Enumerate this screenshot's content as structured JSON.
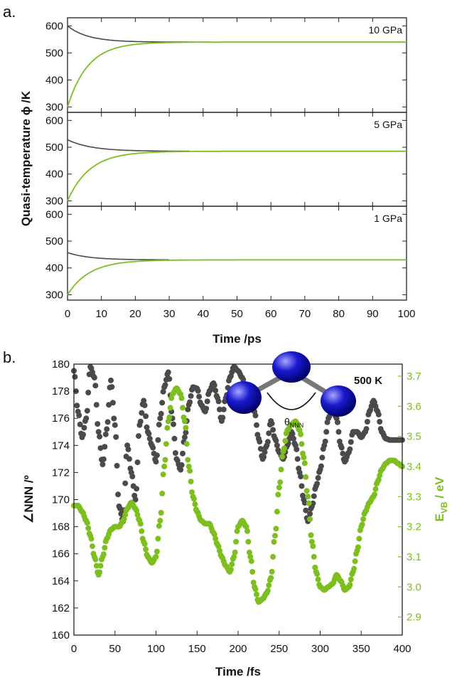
{
  "panels": {
    "a": "a.",
    "b": "b."
  },
  "chart_data": [
    {
      "type": "line",
      "id": "a",
      "xlabel": "Time /ps",
      "ylabel": "Quasi-temperature ϕ /K",
      "xlim": [
        0,
        100
      ],
      "xticks": [
        0,
        10,
        20,
        30,
        40,
        50,
        60,
        70,
        80,
        90,
        100
      ],
      "ylim": [
        280,
        630
      ],
      "yticks": [
        300,
        400,
        500,
        600
      ],
      "colors": {
        "dark": "#4a4a4a",
        "green": "#7cbf1e"
      },
      "subplots": [
        {
          "label": "10 GPa",
          "dark": {
            "start": 600,
            "end": 540,
            "tau": 6,
            "tend": 42
          },
          "green": {
            "start": 300,
            "end": 540,
            "tau": 6,
            "tend": 100
          }
        },
        {
          "label": "5 GPa",
          "dark": {
            "start": 528,
            "end": 485,
            "tau": 7,
            "tend": 36
          },
          "green": {
            "start": 300,
            "end": 485,
            "tau": 6.5,
            "tend": 100
          }
        },
        {
          "label": "1 GPa",
          "dark": {
            "start": 457,
            "end": 430,
            "tau": 6.5,
            "tend": 30
          },
          "green": {
            "start": 300,
            "end": 430,
            "tau": 6.5,
            "tend": 100
          }
        }
      ]
    },
    {
      "type": "scatter",
      "id": "b",
      "xlabel": "Time /fs",
      "ylabel_left": "∠NNN /º",
      "ylabel_right_main": "E",
      "ylabel_right_sub": "VB",
      "ylabel_right_unit": " / eV",
      "annotation": "500 K",
      "angle_label_main": "θ",
      "angle_label_sub": "NNN",
      "xlim": [
        0,
        400
      ],
      "xticks": [
        0,
        50,
        100,
        150,
        200,
        250,
        300,
        350,
        400
      ],
      "ylim_left": [
        160,
        180
      ],
      "yticks_left": [
        160,
        162,
        164,
        166,
        168,
        170,
        172,
        174,
        176,
        178,
        180
      ],
      "ylim_right": [
        2.84,
        3.74
      ],
      "yticks_right": [
        2.9,
        3.0,
        3.1,
        3.2,
        3.3,
        3.4,
        3.5,
        3.6,
        3.7
      ],
      "colors": {
        "angle": "#4a4a4a",
        "energy": "#7cbf1e",
        "atom": "#1a1ad0"
      },
      "series": [
        {
          "name": "∠NNN",
          "axis": "left",
          "x": [
            0,
            5,
            10,
            15,
            20,
            25,
            30,
            35,
            40,
            45,
            50,
            55,
            60,
            65,
            70,
            75,
            80,
            85,
            90,
            95,
            100,
            105,
            110,
            115,
            120,
            125,
            130,
            135,
            140,
            145,
            150,
            155,
            160,
            165,
            170,
            175,
            180,
            185,
            190,
            195,
            200,
            205,
            210,
            215,
            220,
            225,
            230,
            235,
            240,
            245,
            250,
            255,
            260,
            265,
            270,
            275,
            280,
            285,
            290,
            295,
            300,
            305,
            310,
            315,
            320,
            325,
            330,
            335,
            340,
            345,
            350,
            355,
            360,
            365,
            370,
            375,
            380,
            385,
            390,
            395,
            400
          ],
          "y": [
            179.5,
            176.5,
            174.6,
            176.0,
            179.8,
            179.0,
            175.0,
            172.6,
            175.2,
            178.8,
            175.5,
            169.5,
            168.4,
            174.0,
            172.0,
            170.0,
            175.5,
            177.3,
            175.0,
            174.0,
            172.8,
            176.0,
            178.3,
            179.4,
            176.0,
            173.0,
            172.2,
            174.6,
            177.0,
            178.3,
            178.2,
            177.0,
            176.5,
            178.0,
            178.6,
            177.5,
            175.8,
            177.5,
            179.0,
            179.8,
            179.5,
            179.0,
            178.0,
            177.0,
            176.5,
            174.5,
            173.0,
            174.0,
            175.8,
            174.5,
            173.5,
            173.0,
            174.0,
            175.0,
            174.0,
            172.0,
            170.0,
            168.4,
            169.5,
            171.0,
            172.2,
            174.0,
            176.0,
            177.0,
            176.0,
            174.0,
            172.8,
            173.5,
            175.0,
            175.0,
            174.6,
            175.0,
            176.5,
            177.3,
            176.5,
            175.0,
            174.5,
            174.4,
            174.4,
            174.4,
            174.4
          ]
        },
        {
          "name": "E_VB",
          "axis": "right",
          "x": [
            0,
            5,
            10,
            15,
            20,
            25,
            30,
            35,
            40,
            45,
            50,
            55,
            60,
            65,
            70,
            75,
            80,
            85,
            90,
            95,
            100,
            105,
            110,
            115,
            120,
            125,
            130,
            135,
            140,
            145,
            150,
            155,
            160,
            165,
            170,
            175,
            180,
            185,
            190,
            195,
            200,
            205,
            210,
            215,
            220,
            225,
            230,
            235,
            240,
            245,
            250,
            255,
            260,
            265,
            270,
            275,
            280,
            285,
            290,
            295,
            300,
            305,
            310,
            315,
            320,
            325,
            330,
            335,
            340,
            345,
            350,
            355,
            360,
            365,
            370,
            375,
            380,
            385,
            390,
            395,
            400
          ],
          "y": [
            3.27,
            3.27,
            3.25,
            3.22,
            3.17,
            3.1,
            3.04,
            3.1,
            3.16,
            3.19,
            3.2,
            3.2,
            3.22,
            3.26,
            3.28,
            3.26,
            3.22,
            3.15,
            3.1,
            3.08,
            3.1,
            3.22,
            3.4,
            3.55,
            3.64,
            3.66,
            3.64,
            3.55,
            3.4,
            3.3,
            3.25,
            3.22,
            3.21,
            3.21,
            3.18,
            3.14,
            3.1,
            3.07,
            3.05,
            3.1,
            3.2,
            3.22,
            3.2,
            3.1,
            3.0,
            2.95,
            2.96,
            2.98,
            3.03,
            3.17,
            3.33,
            3.45,
            3.52,
            3.54,
            3.55,
            3.52,
            3.43,
            3.3,
            3.15,
            3.05,
            3.0,
            2.99,
            3.0,
            3.01,
            3.04,
            3.02,
            2.99,
            3.0,
            3.05,
            3.12,
            3.2,
            3.25,
            3.28,
            3.3,
            3.35,
            3.39,
            3.41,
            3.42,
            3.42,
            3.41,
            3.4
          ]
        }
      ]
    }
  ]
}
